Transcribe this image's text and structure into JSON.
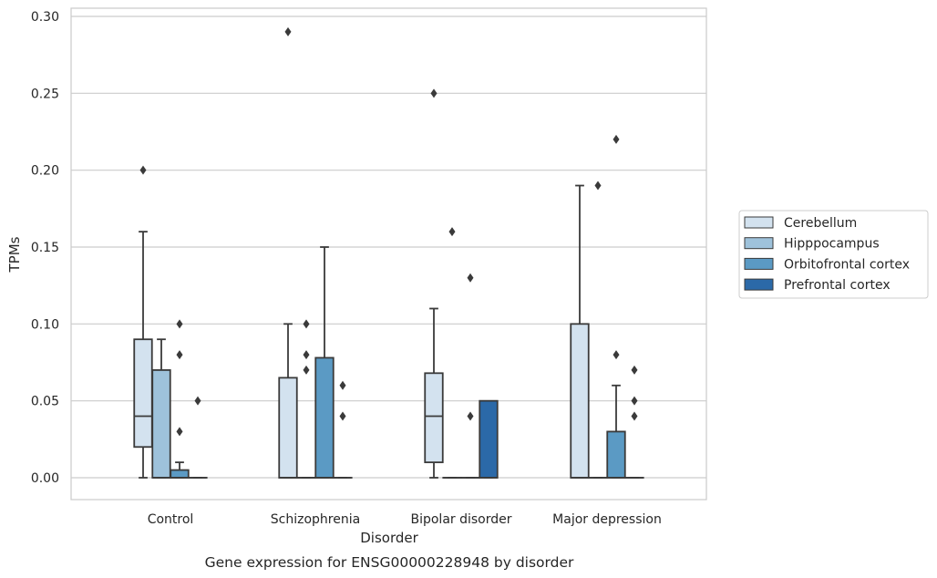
{
  "chart_data": {
    "type": "box",
    "title": "",
    "caption": "Gene expression for ENSG00000228948 by disorder",
    "xlabel": "Disorder",
    "ylabel": "TPMs",
    "ylim": [
      -0.014,
      0.305
    ],
    "yticks": [
      0.0,
      0.05,
      0.1,
      0.15,
      0.2,
      0.25,
      0.3
    ],
    "ytick_labels": [
      "0.00",
      "0.05",
      "0.10",
      "0.15",
      "0.20",
      "0.25",
      "0.30"
    ],
    "grid": "horizontal",
    "legend_position": "right",
    "categories": [
      "Control",
      "Schizophrenia",
      "Bipolar disorder",
      "Major depression"
    ],
    "series": [
      {
        "name": "Cerebellum",
        "color": "#d3e2ef",
        "boxes": [
          {
            "q1": 0.02,
            "median": 0.04,
            "q3": 0.09,
            "whisker_low": 0.0,
            "whisker_high": 0.16,
            "outliers": [
              0.2
            ]
          },
          {
            "q1": 0.0,
            "median": 0.0,
            "q3": 0.065,
            "whisker_low": 0.0,
            "whisker_high": 0.1,
            "outliers": [
              0.29
            ]
          },
          {
            "q1": 0.01,
            "median": 0.04,
            "q3": 0.068,
            "whisker_low": 0.0,
            "whisker_high": 0.11,
            "outliers": [
              0.25
            ]
          },
          {
            "q1": 0.0,
            "median": 0.0,
            "q3": 0.1,
            "whisker_low": 0.0,
            "whisker_high": 0.19,
            "outliers": []
          }
        ]
      },
      {
        "name": "Hipppocampus",
        "color": "#9ec2db",
        "boxes": [
          {
            "q1": 0.0,
            "median": 0.0,
            "q3": 0.07,
            "whisker_low": 0.0,
            "whisker_high": 0.09,
            "outliers": []
          },
          {
            "q1": 0.0,
            "median": 0.0,
            "q3": 0.0,
            "whisker_low": 0.0,
            "whisker_high": 0.0,
            "outliers": [
              0.07,
              0.08,
              0.1
            ]
          },
          {
            "q1": 0.0,
            "median": 0.0,
            "q3": 0.0,
            "whisker_low": 0.0,
            "whisker_high": 0.0,
            "outliers": [
              0.16
            ]
          },
          {
            "q1": 0.0,
            "median": 0.0,
            "q3": 0.0,
            "whisker_low": 0.0,
            "whisker_high": 0.0,
            "outliers": [
              0.19
            ]
          }
        ]
      },
      {
        "name": "Orbitofrontal cortex",
        "color": "#5b9ac4",
        "boxes": [
          {
            "q1": 0.0,
            "median": 0.0,
            "q3": 0.005,
            "whisker_low": 0.0,
            "whisker_high": 0.01,
            "outliers": [
              0.03,
              0.08,
              0.1
            ]
          },
          {
            "q1": 0.0,
            "median": 0.0,
            "q3": 0.078,
            "whisker_low": 0.0,
            "whisker_high": 0.15,
            "outliers": []
          },
          {
            "q1": 0.0,
            "median": 0.0,
            "q3": 0.0,
            "whisker_low": 0.0,
            "whisker_high": 0.0,
            "outliers": [
              0.04,
              0.13
            ]
          },
          {
            "q1": 0.0,
            "median": 0.0,
            "q3": 0.03,
            "whisker_low": 0.0,
            "whisker_high": 0.06,
            "outliers": [
              0.08,
              0.22
            ]
          }
        ]
      },
      {
        "name": "Prefrontal cortex",
        "color": "#2b69a8",
        "boxes": [
          {
            "q1": 0.0,
            "median": 0.0,
            "q3": 0.0,
            "whisker_low": 0.0,
            "whisker_high": 0.0,
            "outliers": [
              0.05
            ]
          },
          {
            "q1": 0.0,
            "median": 0.0,
            "q3": 0.0,
            "whisker_low": 0.0,
            "whisker_high": 0.0,
            "outliers": [
              0.04,
              0.06
            ]
          },
          {
            "q1": 0.0,
            "median": 0.0,
            "q3": 0.05,
            "whisker_low": 0.0,
            "whisker_high": 0.05,
            "outliers": []
          },
          {
            "q1": 0.0,
            "median": 0.0,
            "q3": 0.0,
            "whisker_low": 0.0,
            "whisker_high": 0.0,
            "outliers": [
              0.04,
              0.05,
              0.07
            ]
          }
        ]
      }
    ]
  }
}
